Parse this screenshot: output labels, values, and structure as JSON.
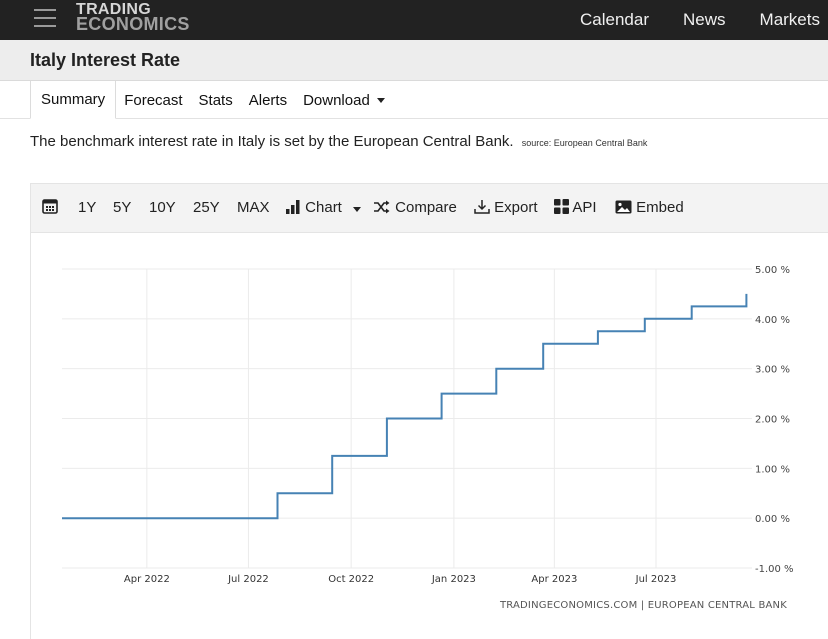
{
  "header": {
    "logo_line1": "TRADING",
    "logo_line2": "ECONOMICS",
    "nav": [
      "Calendar",
      "News",
      "Markets"
    ]
  },
  "page": {
    "title": "Italy Interest Rate",
    "tabs": [
      "Summary",
      "Forecast",
      "Stats",
      "Alerts",
      "Download"
    ],
    "active_tab": "Summary",
    "description": "The benchmark interest rate in Italy is set by the European Central Bank.",
    "source": "source: European Central Bank"
  },
  "toolbar": {
    "ranges": [
      "1Y",
      "5Y",
      "10Y",
      "25Y",
      "MAX"
    ],
    "chart_label": "Chart",
    "compare_label": "Compare",
    "export_label": "Export",
    "api_label": "API",
    "embed_label": "Embed"
  },
  "chart_data": {
    "type": "line",
    "title": "",
    "xlabel": "",
    "ylabel": "",
    "x_ticks": [
      "Apr 2022",
      "Jul 2022",
      "Oct 2022",
      "Jan 2023",
      "Apr 2023",
      "Jul 2023"
    ],
    "y_ticks": [
      "5.00 %",
      "4.00 %",
      "3.00 %",
      "2.00 %",
      "1.00 %",
      "0.00 %",
      "-1.00 %"
    ],
    "ylim": [
      -1,
      5
    ],
    "xlim": [
      "2022-01-15",
      "2023-09-25"
    ],
    "step": true,
    "grid": true,
    "line_color": "#4682b4",
    "series": [
      {
        "name": "",
        "points": [
          {
            "x": "2022-01-15",
            "y": 0.0
          },
          {
            "x": "2022-07-27",
            "y": 0.5
          },
          {
            "x": "2022-09-14",
            "y": 1.25
          },
          {
            "x": "2022-11-02",
            "y": 2.0
          },
          {
            "x": "2022-12-21",
            "y": 2.5
          },
          {
            "x": "2023-02-08",
            "y": 3.0
          },
          {
            "x": "2023-03-22",
            "y": 3.5
          },
          {
            "x": "2023-05-10",
            "y": 3.75
          },
          {
            "x": "2023-06-21",
            "y": 4.0
          },
          {
            "x": "2023-08-02",
            "y": 4.25
          },
          {
            "x": "2023-09-20",
            "y": 4.5
          }
        ]
      }
    ],
    "credit": "TRADINGECONOMICS.COM | EUROPEAN CENTRAL BANK"
  }
}
